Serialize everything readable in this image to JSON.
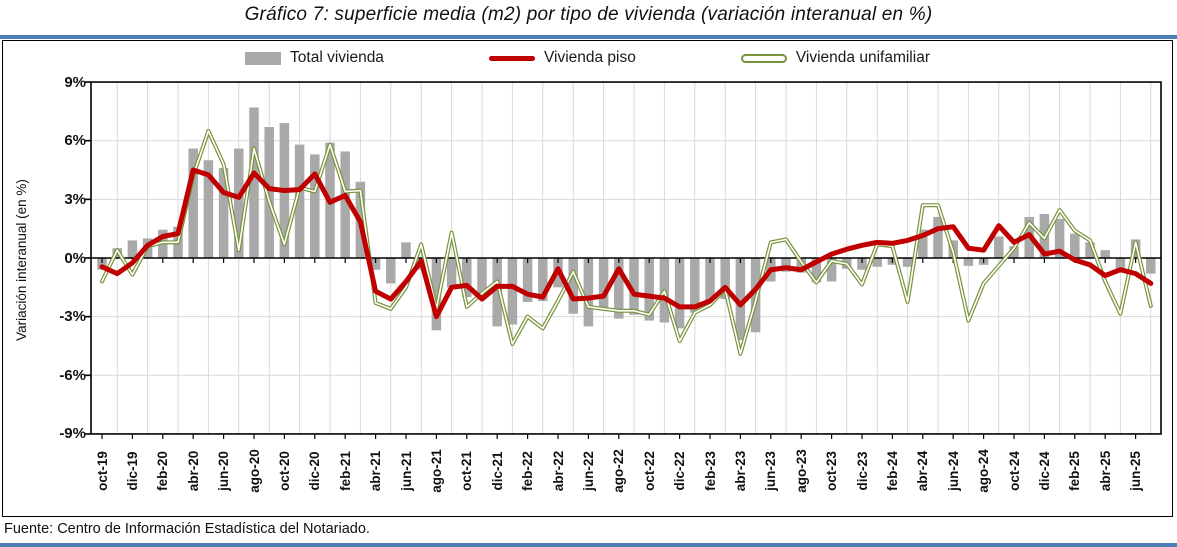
{
  "header": {
    "title": "Gráfico 7: superficie media (m2) por tipo de vivienda (variación interanual en %)"
  },
  "legend": {
    "items": [
      {
        "label": "Total vivienda",
        "swatch": "gray-bar-swatch"
      },
      {
        "label": "Vivienda piso",
        "swatch": "red-line-swatch"
      },
      {
        "label": "Vivienda unifamiliar",
        "swatch": "olive-line-swatch"
      }
    ]
  },
  "axes": {
    "y_title": "Variación interanual (en %)",
    "y_tick_suffix": "%"
  },
  "footer": {
    "source": "Fuente: Centro de Información Estadística del Notariado."
  },
  "colors": {
    "bar_gray": "#a9a9a9",
    "line_red": "#c00000",
    "line_olive": "#77933c",
    "grid": "#d9d9d9",
    "axis": "#000000",
    "accent_blue": "#4e7db5"
  },
  "chart_data": {
    "type": "bar+line",
    "title": "Gráfico 7: superficie media (m2) por tipo de vivienda (variación interanual en %)",
    "ylabel": "Variación interanual (en %)",
    "ylim": [
      -9,
      9
    ],
    "ytick_step": 3,
    "grid": true,
    "legend_position": "top",
    "x_label_every": 2,
    "categories": [
      "oct-19",
      "nov-19",
      "dic-19",
      "ene-20",
      "feb-20",
      "mar-20",
      "abr-20",
      "may-20",
      "jun-20",
      "jul-20",
      "ago-20",
      "sep-20",
      "oct-20",
      "nov-20",
      "dic-20",
      "ene-21",
      "feb-21",
      "mar-21",
      "abr-21",
      "may-21",
      "jun-21",
      "jul-21",
      "ago-21",
      "sep-21",
      "oct-21",
      "nov-21",
      "dic-21",
      "ene-22",
      "feb-22",
      "mar-22",
      "abr-22",
      "may-22",
      "jun-22",
      "jul-22",
      "ago-22",
      "sep-22",
      "oct-22",
      "nov-22",
      "dic-22",
      "ene-23",
      "feb-23",
      "mar-23",
      "abr-23",
      "may-23",
      "jun-23",
      "jul-23",
      "ago-23",
      "sep-23",
      "oct-23",
      "nov-23",
      "dic-23",
      "ene-24",
      "feb-24",
      "mar-24",
      "abr-24",
      "may-24",
      "jun-24",
      "jul-24",
      "ago-24",
      "sep-24",
      "oct-24",
      "nov-24",
      "dic-24",
      "ene-25",
      "feb-25",
      "mar-25",
      "abr-25",
      "may-25",
      "jun-25",
      "jul-25"
    ],
    "series": [
      {
        "name": "Total vivienda",
        "type": "bar",
        "color": "bar_gray",
        "values": [
          -0.6,
          0.5,
          0.9,
          1.0,
          1.45,
          1.6,
          5.6,
          5.0,
          4.6,
          5.6,
          7.7,
          6.7,
          6.9,
          5.8,
          5.3,
          5.9,
          5.45,
          3.9,
          -0.6,
          -1.3,
          0.8,
          -0.6,
          -3.7,
          -1.5,
          -2.0,
          -1.85,
          -3.5,
          -3.4,
          -2.25,
          -2.2,
          -1.5,
          -2.85,
          -3.5,
          -2.6,
          -3.1,
          -2.9,
          -3.2,
          -3.3,
          -3.6,
          -2.8,
          -2.3,
          -2.1,
          -4.2,
          -3.8,
          -1.2,
          -0.7,
          -0.75,
          -1.25,
          -1.2,
          -0.55,
          -0.6,
          -0.45,
          -0.35,
          -0.45,
          1.45,
          2.1,
          0.9,
          -0.4,
          -0.35,
          1.1,
          0.6,
          2.1,
          2.25,
          2.0,
          1.25,
          0.8,
          0.4,
          -0.65,
          0.95,
          -0.8
        ]
      },
      {
        "name": "Vivienda unifamiliar",
        "type": "line-outlined",
        "color": "line_olive",
        "values": [
          -1.2,
          0.4,
          -0.85,
          0.6,
          0.8,
          0.8,
          4.2,
          6.5,
          4.8,
          0.4,
          5.6,
          2.9,
          0.7,
          3.6,
          3.4,
          5.8,
          3.4,
          3.45,
          -2.3,
          -2.6,
          -1.5,
          0.7,
          -2.6,
          1.3,
          -2.5,
          -1.8,
          -1.2,
          -4.4,
          -3.0,
          -3.6,
          -2.2,
          -0.7,
          -2.5,
          -2.6,
          -2.7,
          -2.7,
          -2.9,
          -1.7,
          -4.25,
          -2.8,
          -2.4,
          -1.6,
          -4.9,
          -2.2,
          0.8,
          0.95,
          -0.2,
          -1.25,
          -0.15,
          -0.3,
          -1.35,
          0.7,
          0.6,
          -2.25,
          2.7,
          2.7,
          0.3,
          -3.2,
          -1.3,
          -0.4,
          0.5,
          1.8,
          1.0,
          2.45,
          1.4,
          0.9,
          -1.2,
          -2.85,
          0.8,
          -2.45
        ]
      },
      {
        "name": "Vivienda piso",
        "type": "line",
        "color": "line_red",
        "values": [
          -0.45,
          -0.8,
          -0.25,
          0.65,
          1.1,
          1.25,
          4.5,
          4.25,
          3.35,
          3.1,
          4.35,
          3.55,
          3.45,
          3.5,
          4.3,
          2.85,
          3.2,
          1.85,
          -1.7,
          -2.1,
          -1.2,
          -0.15,
          -3.0,
          -1.5,
          -1.4,
          -2.1,
          -1.45,
          -1.45,
          -1.85,
          -2.0,
          -0.55,
          -2.1,
          -2.05,
          -1.95,
          -0.55,
          -1.85,
          -1.95,
          -2.05,
          -2.5,
          -2.5,
          -2.2,
          -1.5,
          -2.4,
          -1.6,
          -0.6,
          -0.5,
          -0.6,
          -0.2,
          0.2,
          0.45,
          0.65,
          0.8,
          0.75,
          0.9,
          1.15,
          1.5,
          1.6,
          0.5,
          0.4,
          1.65,
          0.8,
          1.2,
          0.2,
          0.35,
          -0.1,
          -0.35,
          -0.9,
          -0.6,
          -0.8,
          -1.3
        ]
      }
    ]
  }
}
